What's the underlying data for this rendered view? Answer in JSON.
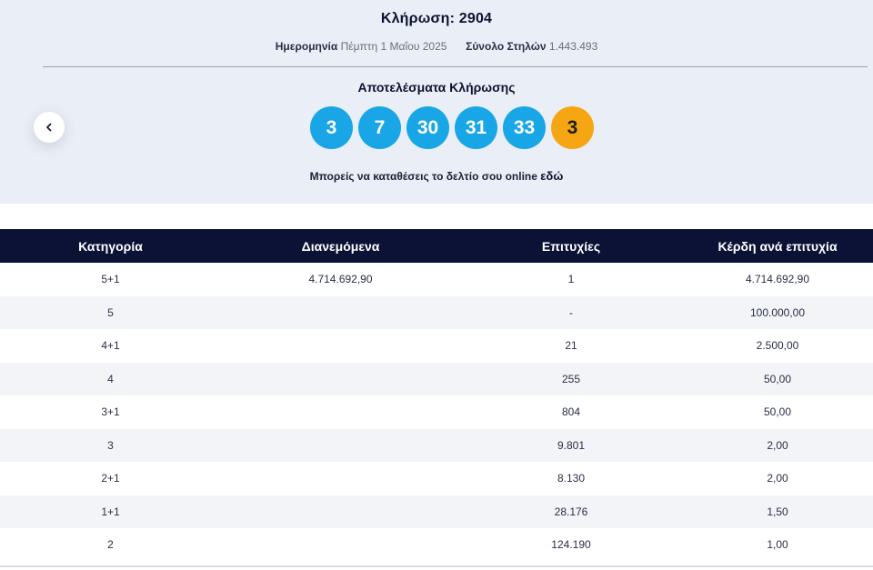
{
  "draw": {
    "title": "Κλήρωση: 2904",
    "date_label": "Ημερομηνία",
    "date_value": "Πέμπτη 1 Μαΐου 2025",
    "columns_label": "Σύνολο Στηλών",
    "columns_value": "1.443.493"
  },
  "results": {
    "title": "Αποτελέσματα Κλήρωσης",
    "numbers": [
      "3",
      "7",
      "30",
      "31",
      "33"
    ],
    "joker": "3",
    "ball_color": "#18a6e6",
    "joker_color": "#f6a612"
  },
  "online": {
    "text": "Μπορείς να καταθέσεις το δελτίο σου online",
    "link": "εδώ"
  },
  "navigation": {
    "prev_icon": "chevron-left-icon"
  },
  "table": {
    "headers": [
      "Κατηγορία",
      "Διανεμόμενα",
      "Επιτυχίες",
      "Κέρδη ανά επιτυχία"
    ],
    "header_color": "#0b1236",
    "rows": [
      [
        "5+1",
        "4.714.692,90",
        "1",
        "4.714.692,90"
      ],
      [
        "5",
        "",
        "-",
        "100.000,00"
      ],
      [
        "4+1",
        "",
        "21",
        "2.500,00"
      ],
      [
        "4",
        "",
        "255",
        "50,00"
      ],
      [
        "3+1",
        "",
        "804",
        "50,00"
      ],
      [
        "3",
        "",
        "9.801",
        "2,00"
      ],
      [
        "2+1",
        "",
        "8.130",
        "2,00"
      ],
      [
        "1+1",
        "",
        "28.176",
        "1,50"
      ],
      [
        "2",
        "",
        "124.190",
        "1,00"
      ]
    ]
  }
}
